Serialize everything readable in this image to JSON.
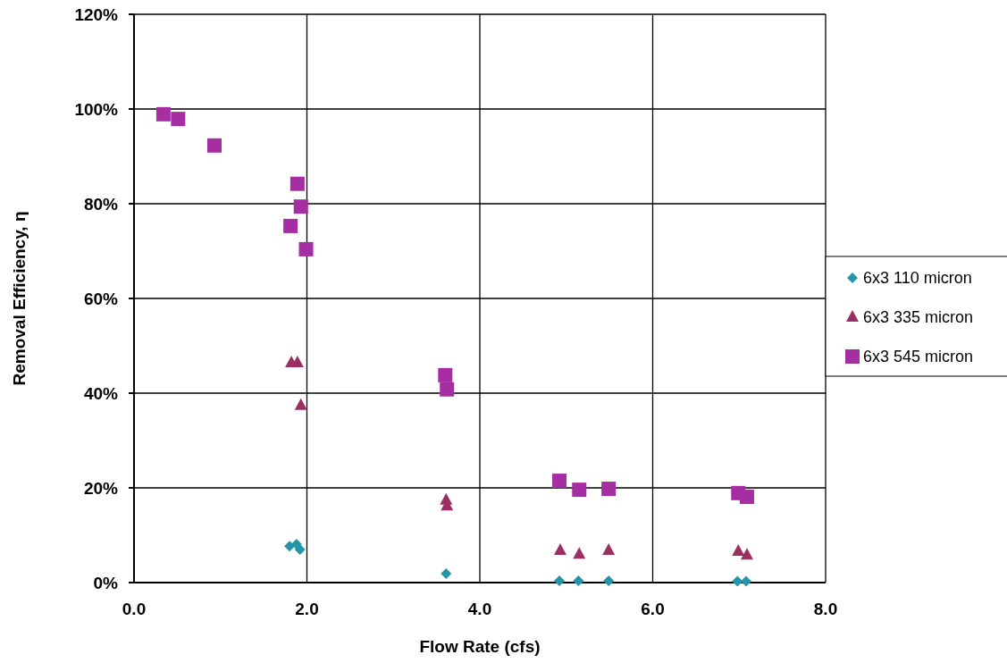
{
  "chart_data": {
    "type": "scatter",
    "xlabel": "Flow Rate (cfs)",
    "ylabel": "Removal Efficiency, η",
    "xlim": [
      0,
      8
    ],
    "xticks": [
      {
        "value": 0,
        "label": "0.0"
      },
      {
        "value": 2,
        "label": "2.0"
      },
      {
        "value": 4,
        "label": "4.0"
      },
      {
        "value": 6,
        "label": "6.0"
      },
      {
        "value": 8,
        "label": "8.0"
      }
    ],
    "ylim": [
      0,
      120
    ],
    "yticks": [
      {
        "value": 0,
        "label": "0%"
      },
      {
        "value": 20,
        "label": "20%"
      },
      {
        "value": 40,
        "label": "40%"
      },
      {
        "value": 60,
        "label": "60%"
      },
      {
        "value": 80,
        "label": "80%"
      },
      {
        "value": 100,
        "label": "100%"
      },
      {
        "value": 120,
        "label": "120%"
      }
    ],
    "grid": true,
    "legend": "right",
    "series": [
      {
        "name": "6x3 110 micron",
        "color": "#2596a8",
        "marker": "diamond",
        "x": [
          1.8,
          1.88,
          1.92,
          3.61,
          4.92,
          5.14,
          5.49,
          6.98,
          7.08
        ],
        "values": [
          7.7,
          8.1,
          7.0,
          1.9,
          0.4,
          0.4,
          0.4,
          0.3,
          0.3
        ]
      },
      {
        "name": "6x3 335 micron",
        "color": "#9b2f63",
        "marker": "triangle",
        "x": [
          1.82,
          1.89,
          1.93,
          3.61,
          3.62,
          4.93,
          5.15,
          5.49,
          6.99,
          7.09
        ],
        "values": [
          46.4,
          46.4,
          37.4,
          17.4,
          16.2,
          6.8,
          6.0,
          6.8,
          6.6,
          5.8
        ]
      },
      {
        "name": "6x3 545 micron",
        "color": "#a52ea3",
        "marker": "square",
        "x": [
          0.34,
          0.51,
          0.93,
          1.89,
          1.93,
          1.81,
          1.99,
          3.6,
          3.62,
          4.92,
          5.15,
          5.49,
          6.99,
          7.09
        ],
        "values": [
          98.9,
          97.9,
          92.3,
          84.2,
          79.4,
          75.3,
          70.4,
          43.8,
          40.8,
          21.5,
          19.6,
          19.8,
          18.9,
          18.1
        ]
      }
    ]
  }
}
